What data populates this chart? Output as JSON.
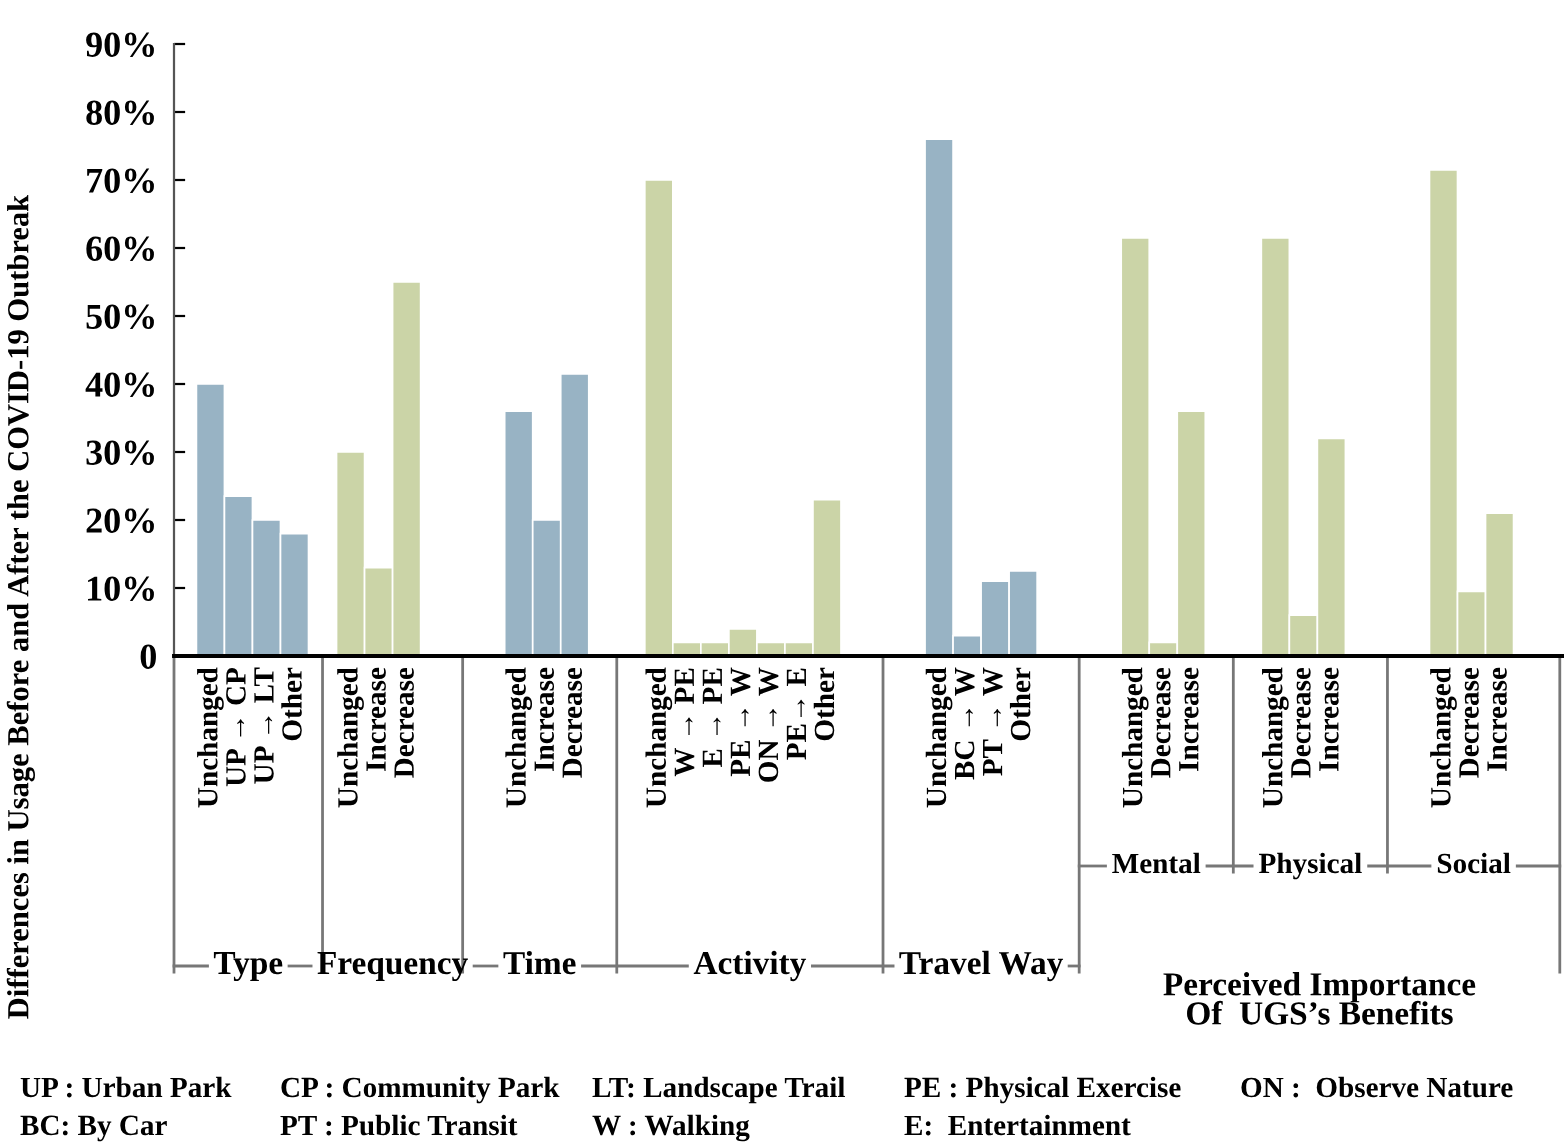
{
  "chart_data": {
    "type": "bar",
    "ylabel": "Differences in Usage Before and After the COVID-19 Outbreak",
    "categories": [
      "Unchanged",
      "UP → CP",
      "UP → LT",
      "Other",
      null,
      "Unchanged",
      "Increase",
      "Decrease",
      null,
      null,
      null,
      "Unchanged",
      "Increase",
      "Decrease",
      null,
      null,
      "Unchanged",
      "W → PE",
      "E → PE",
      "PE → W",
      "ON → W",
      "PE→ E",
      "Other",
      null,
      null,
      null,
      "Unchanged",
      "BC → W",
      "PT → W",
      "Other",
      null,
      null,
      null,
      "Unchanged",
      "Decrease",
      "Increase",
      null,
      null,
      "Unchanged",
      "Decrease",
      "Increase",
      null,
      null,
      null,
      "Unchanged",
      "Decrease",
      "Increase"
    ],
    "series": [
      {
        "values": [
          40,
          23.5,
          20,
          18,
          null,
          30,
          13,
          55,
          null,
          null,
          null,
          36,
          20,
          41.5,
          null,
          null,
          70,
          2,
          2,
          4,
          2,
          2,
          23,
          null,
          null,
          null,
          76,
          3,
          11,
          12.5,
          null,
          null,
          null,
          61.5,
          2,
          36,
          null,
          null,
          61.5,
          6,
          32,
          null,
          null,
          null,
          71.5,
          9.5,
          21
        ],
        "colors": [
          "#98b3c4",
          "#98b3c4",
          "#98b3c4",
          "#98b3c4",
          null,
          "#cbd4a7",
          "#cbd4a7",
          "#cbd4a7",
          null,
          null,
          null,
          "#98b3c4",
          "#98b3c4",
          "#98b3c4",
          null,
          null,
          "#cbd4a7",
          "#cbd4a7",
          "#cbd4a7",
          "#cbd4a7",
          "#cbd4a7",
          "#cbd4a7",
          "#cbd4a7",
          null,
          null,
          null,
          "#98b3c4",
          "#98b3c4",
          "#98b3c4",
          "#98b3c4",
          null,
          null,
          null,
          "#cbd4a7",
          "#cbd4a7",
          "#cbd4a7",
          null,
          null,
          "#cbd4a7",
          "#cbd4a7",
          "#cbd4a7",
          null,
          null,
          null,
          "#cbd4a7",
          "#cbd4a7",
          "#cbd4a7"
        ]
      }
    ],
    "ylim": [
      0,
      90
    ],
    "yticks": [
      {
        "value": 0,
        "label": "0"
      },
      {
        "value": 10,
        "label": "10%"
      },
      {
        "value": 20,
        "label": "20%"
      },
      {
        "value": 30,
        "label": "30%"
      },
      {
        "value": 40,
        "label": "40%"
      },
      {
        "value": 50,
        "label": "50%"
      },
      {
        "value": 60,
        "label": "60%"
      },
      {
        "value": 70,
        "label": "70%"
      },
      {
        "value": 80,
        "label": "80%"
      },
      {
        "value": 90,
        "label": "90%"
      }
    ],
    "grid": false,
    "annotations": [
      "Type",
      "Frequency",
      "Time",
      "Activity",
      "Travel Way",
      "Mental",
      "Physical",
      "Social",
      "Perceived Importance\nOf  UGS’s Benefits",
      "UP : Urban Park",
      "CP : Community Park",
      "LT: Landscape Trail",
      "PE : Physical Exercise",
      "ON :  Observe Nature",
      "BC: By Car",
      "PT : Public Transit",
      "W : Walking",
      "E:  Entertainment"
    ]
  }
}
